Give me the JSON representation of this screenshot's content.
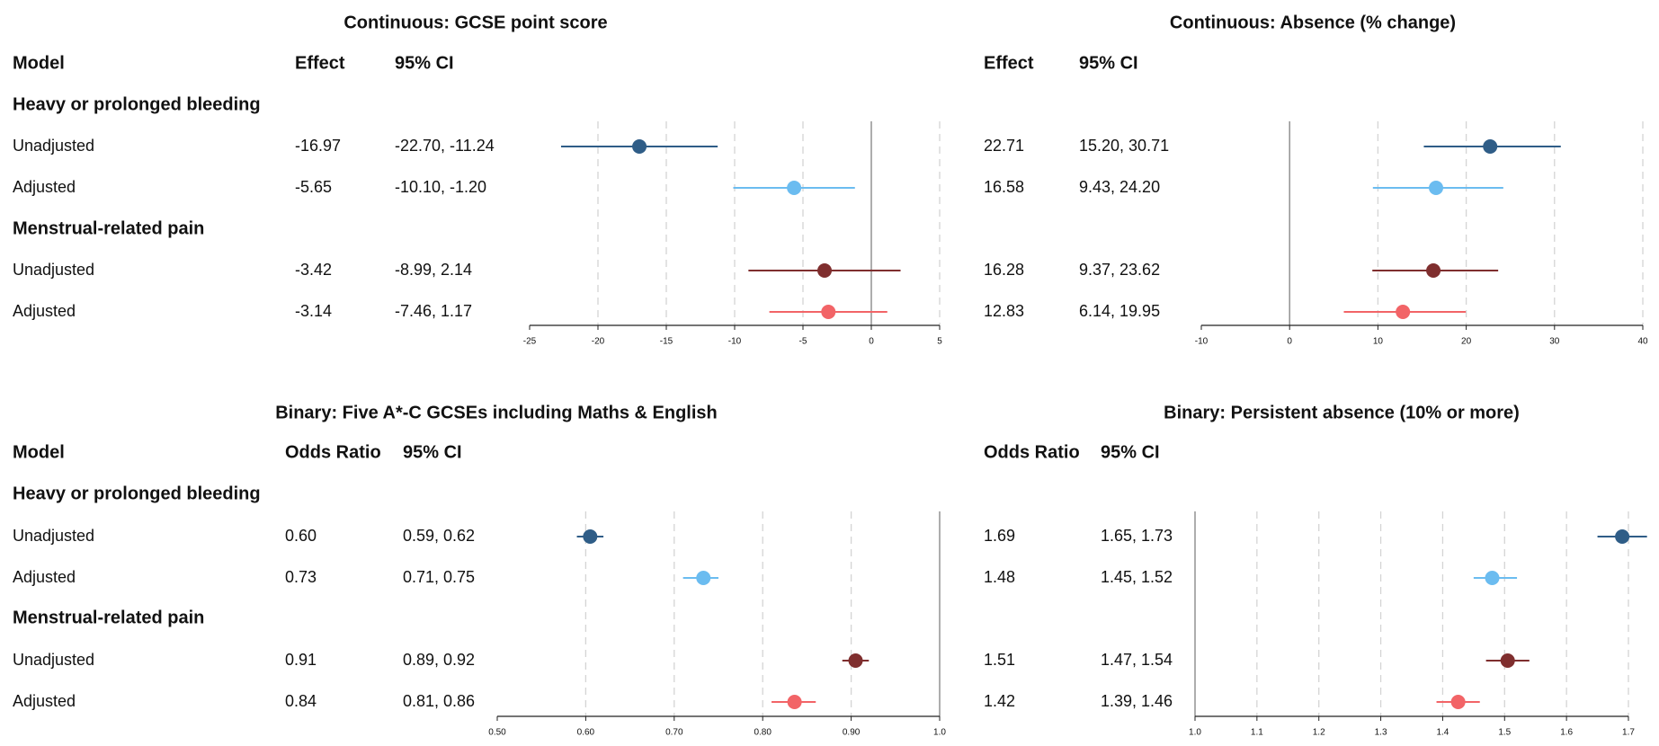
{
  "chart_data": [
    {
      "type": "forest",
      "title": "Continuous: GCSE point score",
      "columns": {
        "model": "Model",
        "effect": "Effect",
        "ci": "95% CI"
      },
      "xlim": [
        -25,
        5
      ],
      "xticks": [
        -25,
        -20,
        -15,
        -10,
        -5,
        0,
        5
      ],
      "tick_labels": [
        "-25",
        "-20",
        "-15",
        "-10",
        "-5",
        "0",
        "5"
      ],
      "reference": 0,
      "groups": [
        {
          "label": "Heavy or prolonged bleeding",
          "rows": [
            {
              "model": "Unadjusted",
              "effect": "-16.97",
              "ci": "-22.70, -11.24",
              "value": -16.97,
              "lower": -22.7,
              "upper": -11.24,
              "color": "#2f5d87"
            },
            {
              "model": "Adjusted",
              "effect": "-5.65",
              "ci": "-10.10, -1.20",
              "value": -5.65,
              "lower": -10.1,
              "upper": -1.2,
              "color": "#6bbcf0"
            }
          ]
        },
        {
          "label": "Menstrual-related pain",
          "rows": [
            {
              "model": "Unadjusted",
              "effect": "-3.42",
              "ci": "-8.99, 2.14",
              "value": -3.42,
              "lower": -8.99,
              "upper": 2.14,
              "color": "#7f2e2e"
            },
            {
              "model": "Adjusted",
              "effect": "-3.14",
              "ci": "-7.46, 1.17",
              "value": -3.14,
              "lower": -7.46,
              "upper": 1.17,
              "color": "#f26467"
            }
          ]
        }
      ]
    },
    {
      "type": "forest",
      "title": "Continuous: Absence (% change)",
      "columns": {
        "effect": "Effect",
        "ci": "95% CI"
      },
      "xlim": [
        -10,
        40
      ],
      "xticks": [
        -10,
        0,
        10,
        20,
        30,
        40
      ],
      "tick_labels": [
        "-10",
        "0",
        "10",
        "20",
        "30",
        "40"
      ],
      "reference": 0,
      "groups": [
        {
          "rows": [
            {
              "effect": "22.71",
              "ci": "15.20, 30.71",
              "value": 22.71,
              "lower": 15.2,
              "upper": 30.71,
              "color": "#2f5d87"
            },
            {
              "effect": "16.58",
              "ci": "9.43, 24.20",
              "value": 16.58,
              "lower": 9.43,
              "upper": 24.2,
              "color": "#6bbcf0"
            }
          ]
        },
        {
          "rows": [
            {
              "effect": "16.28",
              "ci": "9.37, 23.62",
              "value": 16.28,
              "lower": 9.37,
              "upper": 23.62,
              "color": "#7f2e2e"
            },
            {
              "effect": "12.83",
              "ci": "6.14, 19.95",
              "value": 12.83,
              "lower": 6.14,
              "upper": 19.95,
              "color": "#f26467"
            }
          ]
        }
      ]
    },
    {
      "type": "forest",
      "title": "Binary: Five A*-C GCSEs including Maths & English",
      "columns": {
        "model": "Model",
        "effect": "Odds Ratio",
        "ci": "95% CI"
      },
      "xlim": [
        0.5,
        1.0
      ],
      "xticks": [
        0.5,
        0.6,
        0.7,
        0.8,
        0.9,
        1.0
      ],
      "tick_labels": [
        "0.50",
        "0.60",
        "0.70",
        "0.80",
        "0.90",
        "1.0"
      ],
      "reference": 1.0,
      "groups": [
        {
          "label": "Heavy or prolonged bleeding",
          "rows": [
            {
              "model": "Unadjusted",
              "effect": "0.60",
              "ci": "0.59, 0.62",
              "value": 0.605,
              "lower": 0.59,
              "upper": 0.62,
              "color": "#2f5d87"
            },
            {
              "model": "Adjusted",
              "effect": "0.73",
              "ci": "0.71, 0.75",
              "value": 0.733,
              "lower": 0.71,
              "upper": 0.75,
              "color": "#6bbcf0"
            }
          ]
        },
        {
          "label": "Menstrual-related pain",
          "rows": [
            {
              "model": "Unadjusted",
              "effect": "0.91",
              "ci": "0.89, 0.92",
              "value": 0.905,
              "lower": 0.89,
              "upper": 0.92,
              "color": "#7f2e2e"
            },
            {
              "model": "Adjusted",
              "effect": "0.84",
              "ci": "0.81, 0.86",
              "value": 0.836,
              "lower": 0.81,
              "upper": 0.86,
              "color": "#f26467"
            }
          ]
        }
      ]
    },
    {
      "type": "forest",
      "title": "Binary: Persistent absence (10% or more)",
      "columns": {
        "effect": "Odds Ratio",
        "ci": "95% CI"
      },
      "xlim": [
        1.0,
        1.7
      ],
      "xticks": [
        1.0,
        1.1,
        1.2,
        1.3,
        1.4,
        1.5,
        1.6,
        1.7
      ],
      "tick_labels": [
        "1.0",
        "1.1",
        "1.2",
        "1.3",
        "1.4",
        "1.5",
        "1.6",
        "1.7"
      ],
      "reference": 1.0,
      "groups": [
        {
          "rows": [
            {
              "effect": "1.69",
              "ci": "1.65, 1.73",
              "value": 1.69,
              "lower": 1.65,
              "upper": 1.73,
              "color": "#2f5d87"
            },
            {
              "effect": "1.48",
              "ci": "1.45, 1.52",
              "value": 1.48,
              "lower": 1.45,
              "upper": 1.52,
              "color": "#6bbcf0"
            }
          ]
        },
        {
          "rows": [
            {
              "effect": "1.51",
              "ci": "1.47, 1.54",
              "value": 1.505,
              "lower": 1.47,
              "upper": 1.54,
              "color": "#7f2e2e"
            },
            {
              "effect": "1.42",
              "ci": "1.39, 1.46",
              "value": 1.425,
              "lower": 1.39,
              "upper": 1.46,
              "color": "#f26467"
            }
          ]
        }
      ]
    }
  ]
}
